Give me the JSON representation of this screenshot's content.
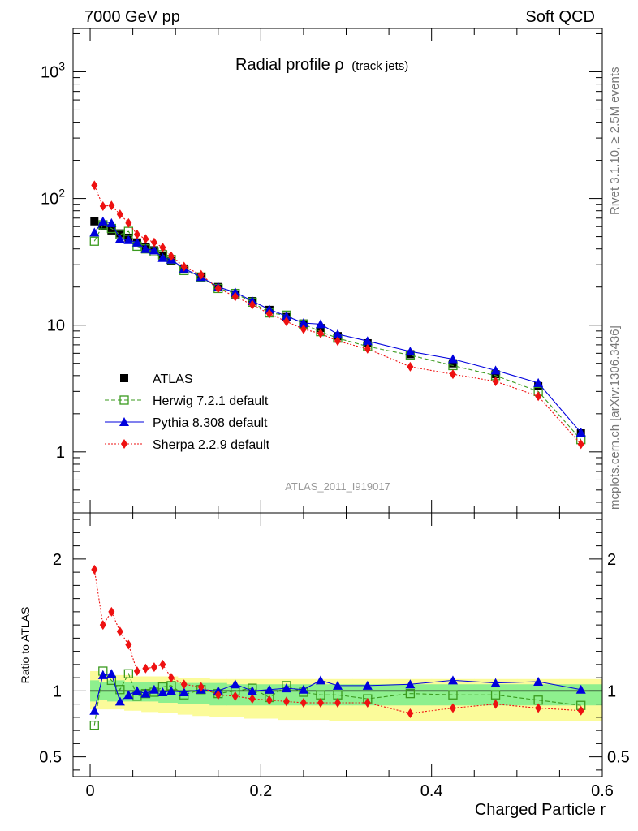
{
  "header": {
    "left": "7000 GeV pp",
    "right": "Soft QCD"
  },
  "plot_title": "Radial profile ρ",
  "plot_title_suffix": "(track jets)",
  "side_label_top": "Rivet 3.1.10, ≥ 2.5M events",
  "side_label_bottom": "mcplots.cern.ch [arXiv:1306.3436]",
  "analysis_id": "ATLAS_2011_I919017",
  "ratio_ylabel": "Ratio to ATLAS",
  "xlabel": "Charged Particle r",
  "colors": {
    "atlas": "#000000",
    "herwig": "#3a9a1e",
    "pythia": "#0000dd",
    "sherpa": "#ee1111",
    "band_inner": "#8ef08e",
    "band_outer": "#fbfb9a"
  },
  "chart_data": [
    {
      "type": "scatter",
      "panel": "main",
      "yscale": "log",
      "xlim": [
        -0.02,
        0.6
      ],
      "ylim": [
        0.33,
        2200
      ],
      "y_ticks": [
        "1",
        "10",
        "10^2",
        "10^3"
      ],
      "x": [
        0.005,
        0.015,
        0.025,
        0.035,
        0.045,
        0.055,
        0.065,
        0.075,
        0.085,
        0.095,
        0.11,
        0.13,
        0.15,
        0.17,
        0.19,
        0.21,
        0.23,
        0.25,
        0.27,
        0.29,
        0.325,
        0.375,
        0.425,
        0.475,
        0.525,
        0.575
      ],
      "series": [
        {
          "name": "ATLAS",
          "style": "data",
          "values": [
            66,
            61,
            56,
            53,
            49,
            45,
            41,
            39,
            35,
            32,
            28,
            24,
            20,
            17.5,
            15.5,
            13.2,
            11.6,
            10.3,
            9.5,
            8.2,
            7.2,
            5.9,
            5.0,
            4.1,
            3.3,
            1.4
          ]
        },
        {
          "name": "Herwig 7.2.1 default",
          "style": "herwig",
          "values": [
            46,
            62,
            58,
            52,
            55,
            42,
            40,
            38,
            36,
            33,
            27,
            24,
            19.5,
            17.8,
            15.2,
            12.5,
            12.0,
            10.2,
            8.9,
            7.9,
            6.8,
            5.8,
            4.8,
            4.0,
            3.0,
            1.25
          ]
        },
        {
          "name": "Pythia 8.308 default",
          "style": "pythia",
          "values": [
            54,
            66,
            64,
            48,
            47,
            45,
            40,
            39,
            34,
            33,
            28,
            24,
            20,
            18.2,
            15.5,
            13.3,
            11.8,
            10.4,
            10.2,
            8.5,
            7.5,
            6.2,
            5.4,
            4.4,
            3.5,
            1.42
          ]
        },
        {
          "name": "Sherpa 2.2.9 default",
          "style": "sherpa",
          "values": [
            127,
            87,
            88,
            75,
            64,
            52,
            48,
            45,
            41,
            35,
            29,
            25,
            19.5,
            16.8,
            14.5,
            12.3,
            10.7,
            9.3,
            8.6,
            7.5,
            6.5,
            4.7,
            4.1,
            3.6,
            2.75,
            1.15
          ]
        }
      ],
      "legend": "left, below middle"
    },
    {
      "type": "scatter",
      "panel": "ratio",
      "xlim": [
        -0.02,
        0.6
      ],
      "ylim": [
        0.35,
        2.35
      ],
      "y_ticks": [
        "0.5",
        "1",
        "2"
      ],
      "x_ticks": [
        "0",
        "0.2",
        "0.4",
        "0.6"
      ],
      "x": [
        0.005,
        0.015,
        0.025,
        0.035,
        0.045,
        0.055,
        0.065,
        0.075,
        0.085,
        0.095,
        0.11,
        0.13,
        0.15,
        0.17,
        0.19,
        0.21,
        0.23,
        0.25,
        0.27,
        0.29,
        0.325,
        0.375,
        0.425,
        0.475,
        0.525,
        0.575
      ],
      "series": [
        {
          "name": "Herwig 7.2.1 default",
          "style": "herwig",
          "values": [
            0.74,
            1.15,
            1.08,
            1.01,
            1.13,
            0.96,
            0.98,
            0.99,
            1.03,
            1.04,
            0.97,
            1.01,
            0.98,
            1.0,
            1.02,
            0.95,
            1.04,
            0.99,
            0.97,
            0.97,
            0.94,
            0.98,
            0.97,
            0.97,
            0.93,
            0.89
          ]
        },
        {
          "name": "Pythia 8.308 default",
          "style": "pythia",
          "values": [
            0.85,
            1.12,
            1.13,
            0.92,
            0.97,
            1.0,
            0.98,
            1.01,
            0.99,
            1.0,
            0.99,
            1.01,
            1.0,
            1.05,
            1.0,
            1.01,
            1.02,
            1.01,
            1.08,
            1.04,
            1.04,
            1.05,
            1.08,
            1.06,
            1.07,
            1.01
          ]
        },
        {
          "name": "Sherpa 2.2.9 default",
          "style": "sherpa",
          "values": [
            1.92,
            1.5,
            1.6,
            1.45,
            1.35,
            1.15,
            1.17,
            1.18,
            1.2,
            1.1,
            1.05,
            1.03,
            0.97,
            0.96,
            0.94,
            0.93,
            0.92,
            0.91,
            0.91,
            0.91,
            0.91,
            0.83,
            0.87,
            0.9,
            0.87,
            0.85
          ]
        }
      ],
      "band_inner": [
        [
          0.92,
          1.08
        ],
        [
          0.93,
          1.07
        ],
        [
          0.92,
          1.08
        ],
        [
          0.92,
          1.08
        ],
        [
          0.92,
          1.07
        ],
        [
          0.92,
          1.07
        ],
        [
          0.92,
          1.07
        ],
        [
          0.92,
          1.07
        ],
        [
          0.91,
          1.07
        ],
        [
          0.91,
          1.07
        ],
        [
          0.9,
          1.06
        ],
        [
          0.9,
          1.06
        ],
        [
          0.89,
          1.06
        ],
        [
          0.89,
          1.05
        ],
        [
          0.89,
          1.05
        ],
        [
          0.89,
          1.05
        ],
        [
          0.89,
          1.05
        ],
        [
          0.89,
          1.05
        ],
        [
          0.89,
          1.05
        ],
        [
          0.89,
          1.05
        ],
        [
          0.89,
          1.05
        ],
        [
          0.89,
          1.05
        ],
        [
          0.89,
          1.05
        ],
        [
          0.89,
          1.05
        ],
        [
          0.89,
          1.05
        ],
        [
          0.89,
          1.05
        ]
      ],
      "band_outer": [
        [
          0.86,
          1.15
        ],
        [
          0.86,
          1.12
        ],
        [
          0.86,
          1.12
        ],
        [
          0.86,
          1.12
        ],
        [
          0.85,
          1.12
        ],
        [
          0.85,
          1.11
        ],
        [
          0.84,
          1.11
        ],
        [
          0.84,
          1.11
        ],
        [
          0.83,
          1.11
        ],
        [
          0.83,
          1.11
        ],
        [
          0.82,
          1.1
        ],
        [
          0.81,
          1.1
        ],
        [
          0.8,
          1.09
        ],
        [
          0.8,
          1.09
        ],
        [
          0.79,
          1.09
        ],
        [
          0.79,
          1.09
        ],
        [
          0.78,
          1.09
        ],
        [
          0.78,
          1.09
        ],
        [
          0.78,
          1.09
        ],
        [
          0.77,
          1.09
        ],
        [
          0.77,
          1.09
        ],
        [
          0.77,
          1.09
        ],
        [
          0.77,
          1.09
        ],
        [
          0.77,
          1.09
        ],
        [
          0.77,
          1.09
        ],
        [
          0.77,
          1.09
        ]
      ]
    }
  ]
}
